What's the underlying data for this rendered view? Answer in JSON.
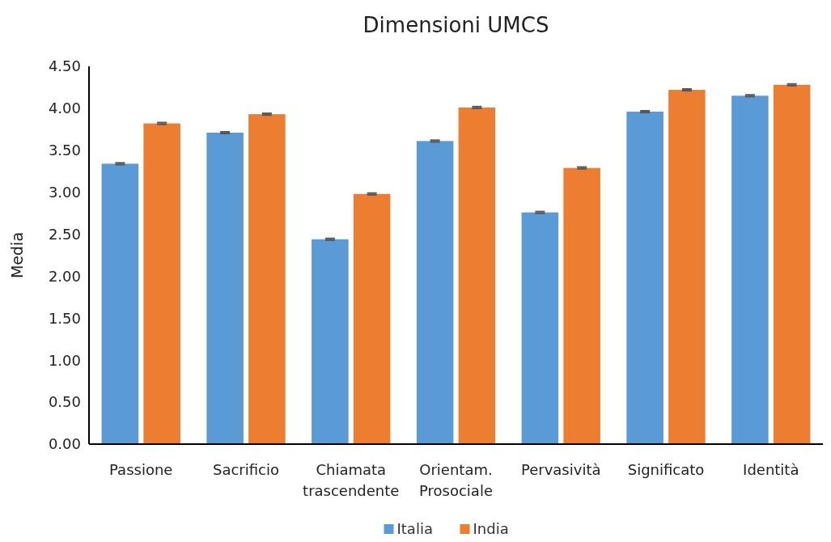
{
  "chart_data": {
    "type": "bar",
    "title": "Dimensioni UMCS",
    "ylabel": "Media",
    "categories": [
      "Passione",
      "Sacrificio",
      "Chiamata trascendente",
      "Orientam. Prosociale",
      "Pervasività",
      "Significato",
      "Identità"
    ],
    "series": [
      {
        "name": "Italia",
        "color": "#5b9bd5",
        "values": [
          3.34,
          3.71,
          2.44,
          3.61,
          2.76,
          3.96,
          4.15
        ],
        "errors": [
          0.01,
          0.01,
          0.01,
          0.01,
          0.01,
          0.01,
          0.01
        ]
      },
      {
        "name": "India",
        "color": "#ed7d31",
        "values": [
          3.82,
          3.93,
          2.98,
          4.01,
          3.29,
          4.22,
          4.28
        ],
        "errors": [
          0.01,
          0.01,
          0.01,
          0.01,
          0.01,
          0.01,
          0.01
        ]
      }
    ],
    "ylim": [
      0,
      4.5
    ],
    "yticks": [
      {
        "value": 0,
        "label": "0.00"
      },
      {
        "value": 0.5,
        "label": "0.50"
      },
      {
        "value": 1,
        "label": "1.00"
      },
      {
        "value": 1.5,
        "label": "1.50"
      },
      {
        "value": 2,
        "label": "2.00"
      },
      {
        "value": 2.5,
        "label": "2.50"
      },
      {
        "value": 3,
        "label": "3.00"
      },
      {
        "value": 3.5,
        "label": "3.50"
      },
      {
        "value": 4,
        "label": "4.00"
      },
      {
        "value": 4.5,
        "label": "4.50"
      }
    ],
    "grid": false,
    "legend": "bottom"
  }
}
